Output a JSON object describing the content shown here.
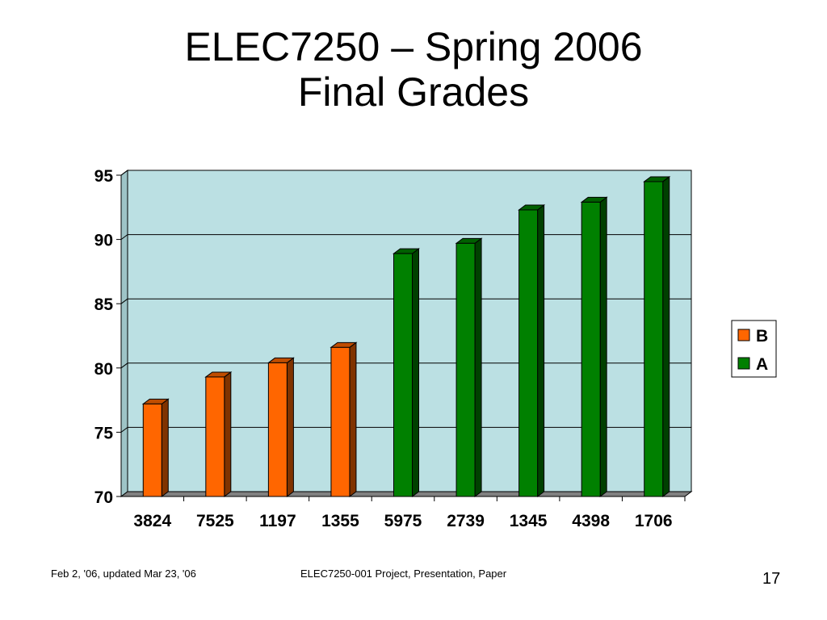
{
  "slide": {
    "title_line1": "ELEC7250 – Spring 2006",
    "title_line2": "Final Grades"
  },
  "footer": {
    "left": "Feb 2, '06, updated Mar 23, '06",
    "center": "ELEC7250-001 Project, Presentation, Paper",
    "page_number": "17"
  },
  "colors": {
    "B": "#ff6600",
    "A": "#008000",
    "plot_background": "#bbe0e3"
  },
  "chart_data": {
    "type": "bar",
    "title": "",
    "xlabel": "",
    "ylabel": "",
    "ylim": [
      70,
      95
    ],
    "yticks": [
      70,
      75,
      80,
      85,
      90,
      95
    ],
    "grid": true,
    "legend_position": "right",
    "categories": [
      "3824",
      "7525",
      "1197",
      "1355",
      "5975",
      "2739",
      "1345",
      "4398",
      "1706"
    ],
    "series": [
      {
        "name": "B",
        "values": [
          77.2,
          79.3,
          80.4,
          81.6,
          null,
          null,
          null,
          null,
          null
        ]
      },
      {
        "name": "A",
        "values": [
          null,
          null,
          null,
          null,
          88.9,
          89.7,
          92.3,
          92.9,
          94.5
        ]
      }
    ],
    "legend_order": [
      "B",
      "A"
    ]
  }
}
